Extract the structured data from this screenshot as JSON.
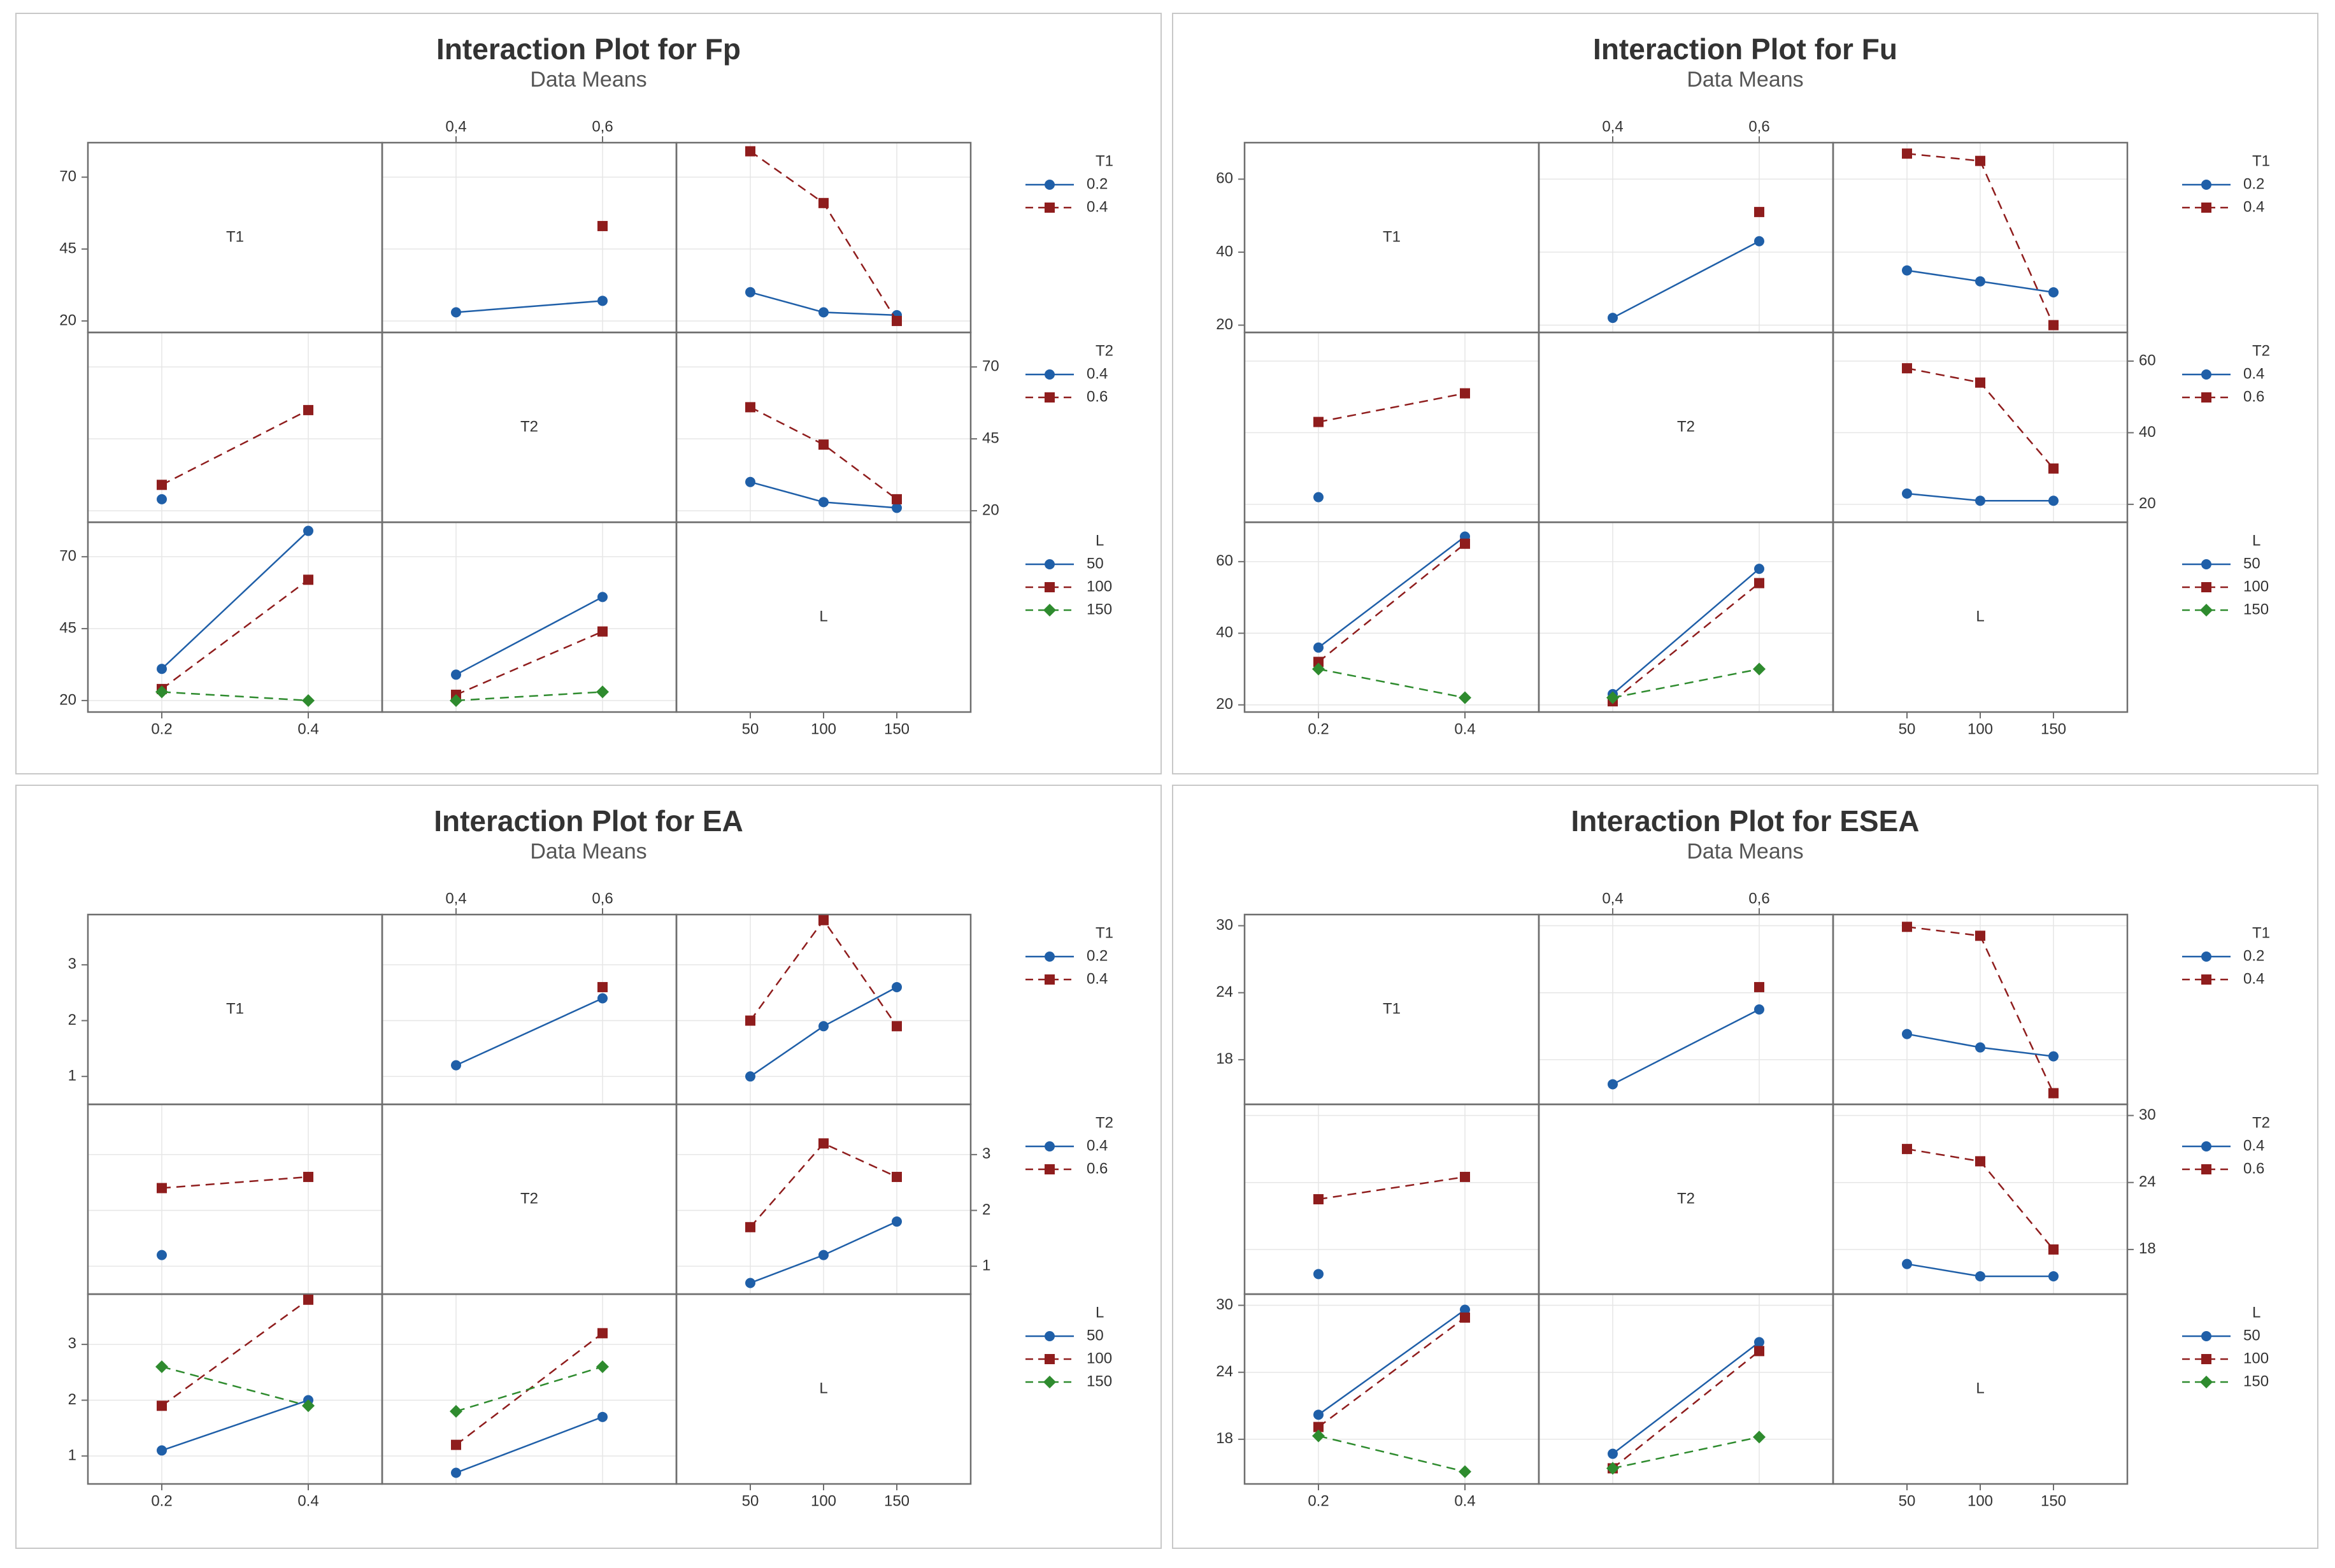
{
  "colors": {
    "blue": "#1f5fa8",
    "red": "#8f1d1d",
    "green": "#2e8b2e",
    "frame": "#6e6e6e",
    "grid": "#e6e6e6"
  },
  "charts": [
    {
      "title": "Interaction Plot for Fp",
      "subtitle": "Data Means",
      "chart_data": {
        "type": "line",
        "title": "Interaction Plot for Fp",
        "subtitle": "Data Means",
        "factors": [
          {
            "name": "T1",
            "levels": [
              0.2,
              0.4
            ],
            "tick_labels": [
              "0.2",
              "0.4"
            ],
            "legend_labels": [
              "0.2",
              "0.4"
            ]
          },
          {
            "name": "T2",
            "levels": [
              0.4,
              0.6
            ],
            "tick_labels": [
              "0,4",
              "0,6"
            ],
            "legend_labels": [
              "0.4",
              "0.6"
            ]
          },
          {
            "name": "L",
            "levels": [
              50,
              100,
              150
            ],
            "tick_labels": [
              "50",
              "100",
              "150"
            ],
            "legend_labels": [
              "50",
              "100",
              "150"
            ]
          }
        ],
        "y_axes": [
          {
            "ylim": [
              16,
              82
            ],
            "ticks": [
              20,
              45,
              70
            ]
          },
          {
            "ylim": [
              16,
              82
            ],
            "ticks": [
              20,
              45,
              70
            ]
          },
          {
            "ylim": [
              16,
              82
            ],
            "ticks": [
              20,
              45,
              70
            ]
          }
        ],
        "interactions": [
          {
            "row": 0,
            "col": 1,
            "series": [
              {
                "level": 0.2,
                "values": [
                  23,
                  27
                ]
              },
              {
                "level": 0.4,
                "values": [
                  null,
                  53
                ]
              }
            ]
          },
          {
            "row": 0,
            "col": 2,
            "series": [
              {
                "level": 0.2,
                "values": [
                  30,
                  23,
                  22
                ]
              },
              {
                "level": 0.4,
                "values": [
                  79,
                  61,
                  20
                ]
              }
            ]
          },
          {
            "row": 1,
            "col": 0,
            "series": [
              {
                "level": 0.4,
                "values": [
                  24,
                  null
                ]
              },
              {
                "level": 0.6,
                "values": [
                  29,
                  55
                ]
              }
            ]
          },
          {
            "row": 1,
            "col": 2,
            "series": [
              {
                "level": 0.4,
                "values": [
                  30,
                  23,
                  21
                ]
              },
              {
                "level": 0.6,
                "values": [
                  56,
                  43,
                  24
                ]
              }
            ]
          },
          {
            "row": 2,
            "col": 0,
            "series": [
              {
                "level": 50,
                "values": [
                  31,
                  79
                ]
              },
              {
                "level": 100,
                "values": [
                  24,
                  62
                ]
              },
              {
                "level": 150,
                "values": [
                  23,
                  20
                ]
              }
            ]
          },
          {
            "row": 2,
            "col": 1,
            "series": [
              {
                "level": 50,
                "values": [
                  29,
                  56
                ]
              },
              {
                "level": 100,
                "values": [
                  22,
                  44
                ]
              },
              {
                "level": 150,
                "values": [
                  20,
                  23
                ]
              }
            ]
          }
        ]
      }
    },
    {
      "title": "Interaction Plot for Fu",
      "subtitle": "Data Means",
      "chart_data": {
        "type": "line",
        "title": "Interaction Plot for Fu",
        "subtitle": "Data Means",
        "factors": [
          {
            "name": "T1",
            "levels": [
              0.2,
              0.4
            ],
            "tick_labels": [
              "0.2",
              "0.4"
            ],
            "legend_labels": [
              "0.2",
              "0.4"
            ]
          },
          {
            "name": "T2",
            "levels": [
              0.4,
              0.6
            ],
            "tick_labels": [
              "0,4",
              "0,6"
            ],
            "legend_labels": [
              "0.4",
              "0.6"
            ]
          },
          {
            "name": "L",
            "levels": [
              50,
              100,
              150
            ],
            "tick_labels": [
              "50",
              "100",
              "150"
            ],
            "legend_labels": [
              "50",
              "100",
              "150"
            ]
          }
        ],
        "y_axes": [
          {
            "ylim": [
              18,
              70
            ],
            "ticks": [
              20,
              40,
              60
            ]
          },
          {
            "ylim": [
              15,
              68
            ],
            "ticks": [
              20,
              40,
              60
            ]
          },
          {
            "ylim": [
              18,
              71
            ],
            "ticks": [
              20,
              40,
              60
            ]
          }
        ],
        "interactions": [
          {
            "row": 0,
            "col": 1,
            "series": [
              {
                "level": 0.2,
                "values": [
                  22,
                  43
                ]
              },
              {
                "level": 0.4,
                "values": [
                  null,
                  51
                ]
              }
            ]
          },
          {
            "row": 0,
            "col": 2,
            "series": [
              {
                "level": 0.2,
                "values": [
                  35,
                  32,
                  29
                ]
              },
              {
                "level": 0.4,
                "values": [
                  67,
                  65,
                  20
                ]
              }
            ]
          },
          {
            "row": 1,
            "col": 0,
            "series": [
              {
                "level": 0.4,
                "values": [
                  22,
                  null
                ]
              },
              {
                "level": 0.6,
                "values": [
                  43,
                  51
                ]
              }
            ]
          },
          {
            "row": 1,
            "col": 2,
            "series": [
              {
                "level": 0.4,
                "values": [
                  23,
                  21,
                  21
                ]
              },
              {
                "level": 0.6,
                "values": [
                  58,
                  54,
                  30
                ]
              }
            ]
          },
          {
            "row": 2,
            "col": 0,
            "series": [
              {
                "level": 50,
                "values": [
                  36,
                  67
                ]
              },
              {
                "level": 100,
                "values": [
                  32,
                  65
                ]
              },
              {
                "level": 150,
                "values": [
                  30,
                  22
                ]
              }
            ]
          },
          {
            "row": 2,
            "col": 1,
            "series": [
              {
                "level": 50,
                "values": [
                  23,
                  58
                ]
              },
              {
                "level": 100,
                "values": [
                  21,
                  54
                ]
              },
              {
                "level": 150,
                "values": [
                  22,
                  30
                ]
              }
            ]
          }
        ]
      }
    },
    {
      "title": "Interaction Plot for EA",
      "subtitle": "Data Means",
      "chart_data": {
        "type": "line",
        "title": "Interaction Plot for EA",
        "subtitle": "Data Means",
        "factors": [
          {
            "name": "T1",
            "levels": [
              0.2,
              0.4
            ],
            "tick_labels": [
              "0.2",
              "0.4"
            ],
            "legend_labels": [
              "0.2",
              "0.4"
            ]
          },
          {
            "name": "T2",
            "levels": [
              0.4,
              0.6
            ],
            "tick_labels": [
              "0,4",
              "0,6"
            ],
            "legend_labels": [
              "0.4",
              "0.6"
            ]
          },
          {
            "name": "L",
            "levels": [
              50,
              100,
              150
            ],
            "tick_labels": [
              "50",
              "100",
              "150"
            ],
            "legend_labels": [
              "50",
              "100",
              "150"
            ]
          }
        ],
        "y_axes": [
          {
            "ylim": [
              0.5,
              3.9
            ],
            "ticks": [
              1,
              2,
              3
            ]
          },
          {
            "ylim": [
              0.5,
              3.9
            ],
            "ticks": [
              1,
              2,
              3
            ]
          },
          {
            "ylim": [
              0.5,
              3.9
            ],
            "ticks": [
              1,
              2,
              3
            ]
          }
        ],
        "interactions": [
          {
            "row": 0,
            "col": 1,
            "series": [
              {
                "level": 0.2,
                "values": [
                  1.2,
                  2.4
                ]
              },
              {
                "level": 0.4,
                "values": [
                  null,
                  2.6
                ]
              }
            ]
          },
          {
            "row": 0,
            "col": 2,
            "series": [
              {
                "level": 0.2,
                "values": [
                  1.0,
                  1.9,
                  2.6
                ]
              },
              {
                "level": 0.4,
                "values": [
                  2.0,
                  3.8,
                  1.9
                ]
              }
            ]
          },
          {
            "row": 1,
            "col": 0,
            "series": [
              {
                "level": 0.4,
                "values": [
                  1.2,
                  null
                ]
              },
              {
                "level": 0.6,
                "values": [
                  2.4,
                  2.6
                ]
              }
            ]
          },
          {
            "row": 1,
            "col": 2,
            "series": [
              {
                "level": 0.4,
                "values": [
                  0.7,
                  1.2,
                  1.8
                ]
              },
              {
                "level": 0.6,
                "values": [
                  1.7,
                  3.2,
                  2.6
                ]
              }
            ]
          },
          {
            "row": 2,
            "col": 0,
            "series": [
              {
                "level": 50,
                "values": [
                  1.1,
                  2.0
                ]
              },
              {
                "level": 100,
                "values": [
                  1.9,
                  3.8
                ]
              },
              {
                "level": 150,
                "values": [
                  2.6,
                  1.9
                ]
              }
            ]
          },
          {
            "row": 2,
            "col": 1,
            "series": [
              {
                "level": 50,
                "values": [
                  0.7,
                  1.7
                ]
              },
              {
                "level": 100,
                "values": [
                  1.2,
                  3.2
                ]
              },
              {
                "level": 150,
                "values": [
                  1.8,
                  2.6
                ]
              }
            ]
          }
        ]
      }
    },
    {
      "title": "Interaction Plot for ESEA",
      "subtitle": "Data Means",
      "chart_data": {
        "type": "line",
        "title": "Interaction Plot for ESEA",
        "subtitle": "Data Means",
        "factors": [
          {
            "name": "T1",
            "levels": [
              0.2,
              0.4
            ],
            "tick_labels": [
              "0.2",
              "0.4"
            ],
            "legend_labels": [
              "0.2",
              "0.4"
            ]
          },
          {
            "name": "T2",
            "levels": [
              0.4,
              0.6
            ],
            "tick_labels": [
              "0,4",
              "0,6"
            ],
            "legend_labels": [
              "0.4",
              "0.6"
            ]
          },
          {
            "name": "L",
            "levels": [
              50,
              100,
              150
            ],
            "tick_labels": [
              "50",
              "100",
              "150"
            ],
            "legend_labels": [
              "50",
              "100",
              "150"
            ]
          }
        ],
        "y_axes": [
          {
            "ylim": [
              14,
              31
            ],
            "ticks": [
              18,
              24,
              30
            ]
          },
          {
            "ylim": [
              14,
              31
            ],
            "ticks": [
              18,
              24,
              30
            ]
          },
          {
            "ylim": [
              14,
              31
            ],
            "ticks": [
              18,
              24,
              30
            ]
          }
        ],
        "interactions": [
          {
            "row": 0,
            "col": 1,
            "series": [
              {
                "level": 0.2,
                "values": [
                  15.8,
                  22.5
                ]
              },
              {
                "level": 0.4,
                "values": [
                  null,
                  24.5
                ]
              }
            ]
          },
          {
            "row": 0,
            "col": 2,
            "series": [
              {
                "level": 0.2,
                "values": [
                  20.3,
                  19.1,
                  18.3
                ]
              },
              {
                "level": 0.4,
                "values": [
                  29.9,
                  29.1,
                  15.0
                ]
              }
            ]
          },
          {
            "row": 1,
            "col": 0,
            "series": [
              {
                "level": 0.4,
                "values": [
                  15.8,
                  null
                ]
              },
              {
                "level": 0.6,
                "values": [
                  22.5,
                  24.5
                ]
              }
            ]
          },
          {
            "row": 1,
            "col": 2,
            "series": [
              {
                "level": 0.4,
                "values": [
                  16.7,
                  15.6,
                  15.6
                ]
              },
              {
                "level": 0.6,
                "values": [
                  27.0,
                  25.9,
                  18.0
                ]
              }
            ]
          },
          {
            "row": 2,
            "col": 0,
            "series": [
              {
                "level": 50,
                "values": [
                  20.2,
                  29.6
                ]
              },
              {
                "level": 100,
                "values": [
                  19.1,
                  28.9
                ]
              },
              {
                "level": 150,
                "values": [
                  18.3,
                  15.1
                ]
              }
            ]
          },
          {
            "row": 2,
            "col": 1,
            "series": [
              {
                "level": 50,
                "values": [
                  16.7,
                  26.7
                ]
              },
              {
                "level": 100,
                "values": [
                  15.4,
                  25.9
                ]
              },
              {
                "level": 150,
                "values": [
                  15.4,
                  18.2
                ]
              }
            ]
          }
        ]
      }
    }
  ]
}
